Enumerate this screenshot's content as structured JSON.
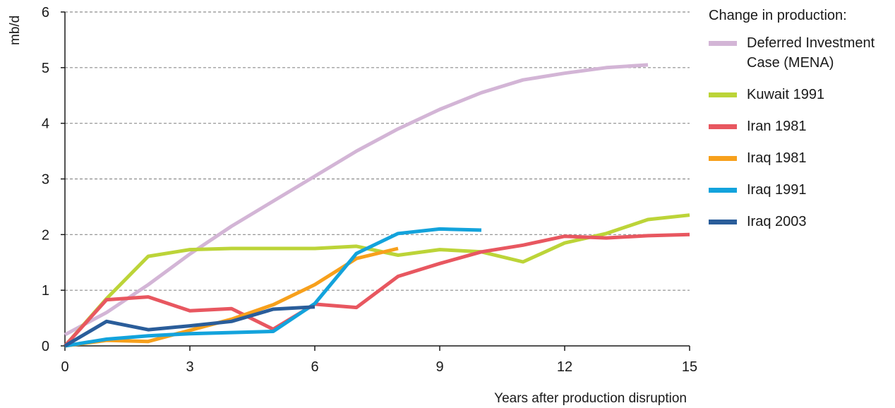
{
  "chart_data": {
    "type": "line",
    "title": "",
    "xlabel": "Years after production disruption",
    "ylabel": "mb/d",
    "xlim": [
      0,
      15
    ],
    "ylim": [
      0,
      6
    ],
    "xticks": [
      0,
      3,
      6,
      9,
      12,
      15
    ],
    "yticks": [
      0,
      1,
      2,
      3,
      4,
      5,
      6
    ],
    "grid": "horizontal-dashed",
    "legend_position": "right",
    "legend_title": "Change in production:",
    "series": [
      {
        "name": "Deferred Investment Case (MENA)",
        "color": "#d3b5d6",
        "x": [
          0,
          1,
          2,
          3,
          4,
          5,
          6,
          7,
          8,
          9,
          10,
          11,
          12,
          13,
          14
        ],
        "y": [
          0.2,
          0.6,
          1.1,
          1.65,
          2.15,
          2.6,
          3.05,
          3.5,
          3.9,
          4.25,
          4.55,
          4.78,
          4.9,
          5.0,
          5.05
        ]
      },
      {
        "name": "Kuwait 1991",
        "color": "#bcd438",
        "x": [
          0,
          1,
          2,
          3,
          4,
          5,
          6,
          7,
          8,
          9,
          10,
          11,
          12,
          13,
          14,
          15
        ],
        "y": [
          0,
          0.85,
          1.61,
          1.73,
          1.75,
          1.75,
          1.75,
          1.79,
          1.63,
          1.73,
          1.69,
          1.51,
          1.85,
          2.02,
          2.27,
          2.35
        ]
      },
      {
        "name": "Iran 1981",
        "color": "#e85760",
        "x": [
          0,
          1,
          2,
          3,
          4,
          5,
          6,
          7,
          8,
          9,
          10,
          11,
          12,
          13,
          14,
          15
        ],
        "y": [
          0,
          0.83,
          0.88,
          0.63,
          0.67,
          0.3,
          0.75,
          0.69,
          1.25,
          1.48,
          1.69,
          1.81,
          1.97,
          1.94,
          1.98,
          2.0
        ]
      },
      {
        "name": "Iraq 1981",
        "color": "#f7a01c",
        "x": [
          0,
          1,
          2,
          3,
          4,
          5,
          6,
          7,
          8
        ],
        "y": [
          0,
          0.1,
          0.08,
          0.28,
          0.48,
          0.74,
          1.1,
          1.57,
          1.75
        ]
      },
      {
        "name": "Iraq 1991",
        "color": "#13a3dc",
        "x": [
          0,
          1,
          2,
          3,
          4,
          5,
          6,
          7,
          8,
          9,
          10
        ],
        "y": [
          0,
          0.12,
          0.18,
          0.22,
          0.24,
          0.26,
          0.76,
          1.66,
          2.02,
          2.1,
          2.08
        ]
      },
      {
        "name": "Iraq 2003",
        "color": "#2a5d9a",
        "x": [
          0,
          1,
          2,
          3,
          4,
          5,
          6
        ],
        "y": [
          0,
          0.44,
          0.29,
          0.36,
          0.44,
          0.66,
          0.7
        ]
      }
    ]
  }
}
